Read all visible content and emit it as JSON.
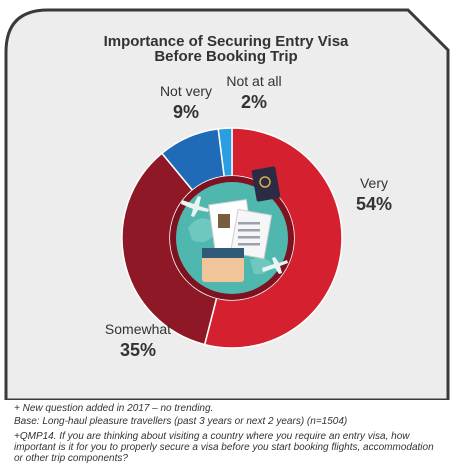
{
  "colors": {
    "card_background": "#ededed",
    "card_border": "#3a3a3a",
    "very": "#d5212f",
    "somewhat": "#8e1826",
    "not_very": "#1f6bb8",
    "not_at_all": "#2a9ee0",
    "center_ring": "#7e1221",
    "center_disc": "#4fb7ad",
    "label_text": "#333333"
  },
  "chart_data": {
    "type": "pie",
    "style": "donut",
    "title": "Importance of Securing Entry Visa Before Booking Trip",
    "title_lines": [
      "Importance of Securing Entry Visa",
      "Before Booking Trip"
    ],
    "slices": [
      {
        "label": "Very",
        "value": 54,
        "value_label": "54%",
        "color": "#d5212f"
      },
      {
        "label": "Somewhat",
        "value": 35,
        "value_label": "35%",
        "color": "#8e1826"
      },
      {
        "label": "Not very",
        "value": 9,
        "value_label": "9%",
        "color": "#1f6bb8"
      },
      {
        "label": "Not at all",
        "value": 2,
        "value_label": "2%",
        "color": "#2a9ee0"
      }
    ],
    "center_image": "travel-documents-illustration"
  },
  "footnotes": {
    "new_question": "+ New question added in 2017 – no trending.",
    "base": "Base: Long-haul pleasure travellers (past 3 years or next 2 years) (n=1504)",
    "question": "+QMP14. If you are thinking about visiting a country where you require an entry visa, how important is it for you to properly secure a visa before you start booking flights, accommodation or other trip components?"
  }
}
